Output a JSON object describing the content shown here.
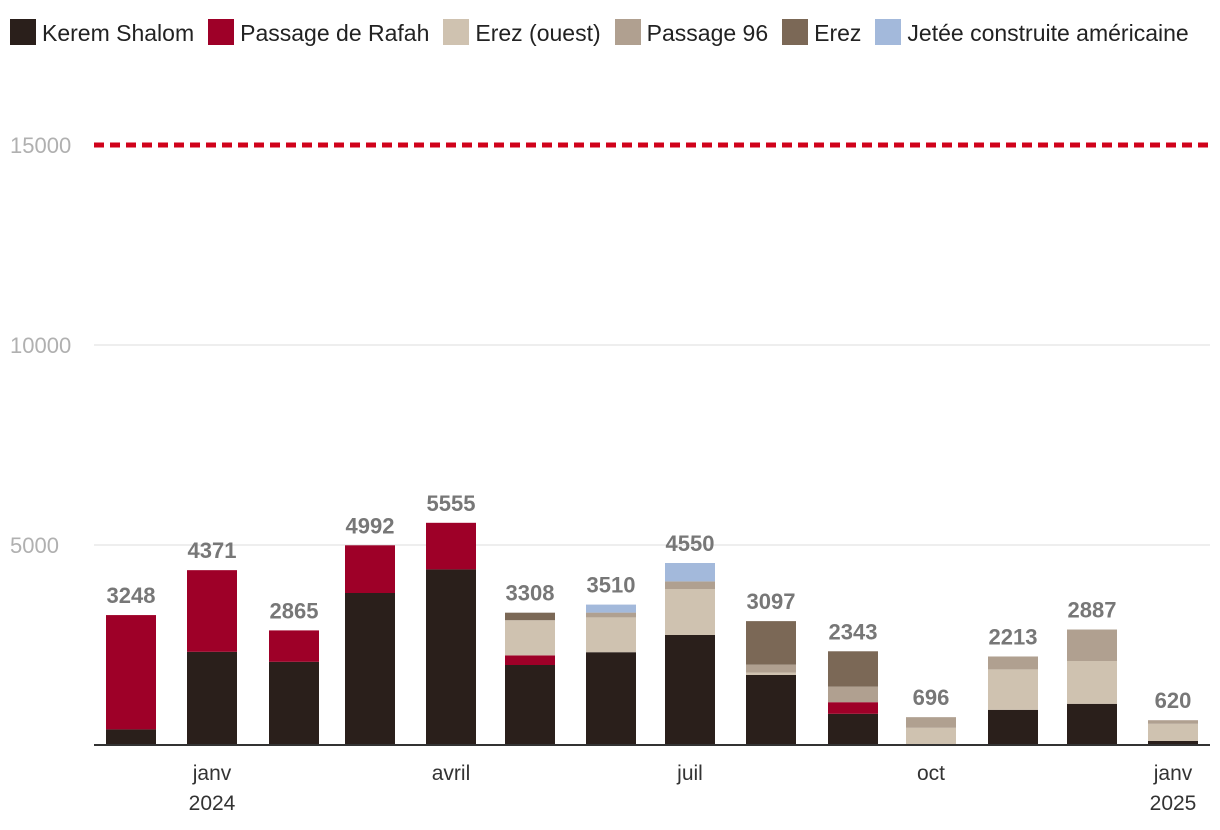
{
  "chart_data": {
    "type": "bar",
    "stacked": true,
    "series": [
      {
        "name": "Kerem Shalom",
        "color": "#2a1f1b",
        "values": [
          390,
          2330,
          2080,
          3800,
          4390,
          2000,
          2320,
          2750,
          1750,
          780,
          0,
          880,
          1030,
          100
        ]
      },
      {
        "name": "Passage de Rafah",
        "color": "#9e0028",
        "values": [
          2858,
          2041,
          785,
          1192,
          1165,
          240,
          0,
          0,
          0,
          290,
          0,
          0,
          0,
          0
        ]
      },
      {
        "name": "Erez (ouest)",
        "color": "#cfc2b0",
        "values": [
          0,
          0,
          0,
          0,
          0,
          880,
          870,
          1150,
          60,
          0,
          430,
          1010,
          1070,
          430
        ]
      },
      {
        "name": "Passage 96",
        "color": "#b0a090",
        "values": [
          0,
          0,
          0,
          0,
          0,
          0,
          120,
          190,
          200,
          390,
          266,
          323,
          787,
          90
        ]
      },
      {
        "name": "Erez",
        "color": "#7b6856",
        "values": [
          0,
          0,
          0,
          0,
          0,
          188,
          0,
          0,
          1087,
          883,
          0,
          0,
          0,
          0
        ]
      },
      {
        "name": "Jetée construite américaine",
        "color": "#a3b9db",
        "values": [
          0,
          0,
          0,
          0,
          0,
          0,
          200,
          460,
          0,
          0,
          0,
          0,
          0,
          0
        ]
      }
    ],
    "totals": [
      3248,
      4371,
      2865,
      4992,
      5555,
      3308,
      3510,
      4550,
      3097,
      2343,
      696,
      2213,
      2887,
      620
    ],
    "reference_line": {
      "value": 15000,
      "color": "#d0021b"
    },
    "yticks": [
      "15000",
      "10000",
      "5000"
    ],
    "ytick_values": [
      15000,
      10000,
      5000
    ],
    "ylim": [
      0,
      15000
    ],
    "xticks": [
      {
        "label": "janv",
        "sub": "2024",
        "bar_index": 1
      },
      {
        "label": "avril",
        "sub": "",
        "bar_index": 4
      },
      {
        "label": "juil",
        "sub": "",
        "bar_index": 7
      },
      {
        "label": "oct",
        "sub": "",
        "bar_index": 10
      },
      {
        "label": "janv",
        "sub": "2025",
        "bar_index": 13
      }
    ],
    "grid": true,
    "legend_position": "top"
  }
}
